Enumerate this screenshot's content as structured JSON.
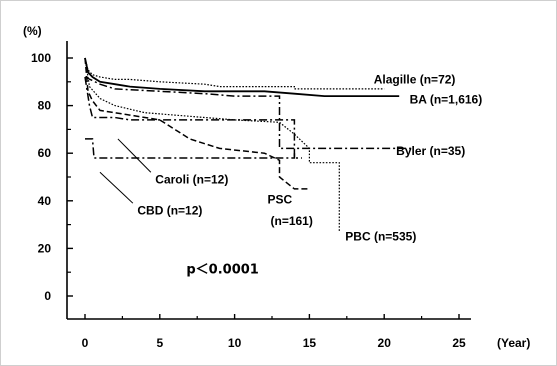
{
  "chart_data": {
    "type": "line",
    "y_unit": "(%)",
    "x_unit": "(Year)",
    "xlim": [
      0,
      25
    ],
    "ylim": [
      0,
      100
    ],
    "x_ticks": [
      "0",
      "5",
      "10",
      "15",
      "20",
      "25"
    ],
    "y_ticks": [
      "0",
      "20",
      "40",
      "60",
      "80",
      "100"
    ],
    "grid": false,
    "p_value": "p＜0.0001",
    "series": [
      {
        "name": "Alagille (n=72)",
        "style": "dotted",
        "points": [
          [
            0,
            100
          ],
          [
            0.2,
            95
          ],
          [
            0.5,
            93
          ],
          [
            1,
            92
          ],
          [
            2,
            91
          ],
          [
            3,
            91
          ],
          [
            5,
            90
          ],
          [
            8,
            89
          ],
          [
            9,
            88
          ],
          [
            14,
            88
          ],
          [
            14,
            87
          ],
          [
            20,
            87
          ]
        ]
      },
      {
        "name": "BA (n=1,616)",
        "style": "solid",
        "points": [
          [
            0,
            100
          ],
          [
            0.2,
            94
          ],
          [
            0.5,
            92
          ],
          [
            1,
            90
          ],
          [
            2,
            89
          ],
          [
            3,
            88
          ],
          [
            5,
            87
          ],
          [
            8,
            86
          ],
          [
            12,
            86
          ],
          [
            14,
            85
          ],
          [
            16,
            84
          ],
          [
            21,
            84
          ]
        ]
      },
      {
        "name": "Byler (n=35)",
        "style": "dashdot",
        "points": [
          [
            0,
            92
          ],
          [
            1,
            89
          ],
          [
            2,
            87
          ],
          [
            5,
            86
          ],
          [
            8,
            85
          ],
          [
            10,
            84
          ],
          [
            13,
            84
          ],
          [
            13,
            62
          ],
          [
            17,
            62
          ],
          [
            22,
            62
          ]
        ]
      },
      {
        "name": "PBC (n=535)",
        "style": "dotted",
        "points": [
          [
            0,
            100
          ],
          [
            0.3,
            88
          ],
          [
            1,
            83
          ],
          [
            2,
            80
          ],
          [
            4,
            77
          ],
          [
            6,
            76
          ],
          [
            8,
            75
          ],
          [
            10,
            74
          ],
          [
            13,
            73
          ],
          [
            14,
            68
          ],
          [
            15,
            62
          ],
          [
            15,
            56
          ],
          [
            16,
            56
          ],
          [
            17,
            56
          ],
          [
            17,
            27
          ]
        ]
      },
      {
        "name": "PSC\n(n=161)",
        "style": "dashed",
        "points": [
          [
            0,
            100
          ],
          [
            0.2,
            86
          ],
          [
            0.5,
            82
          ],
          [
            1,
            78
          ],
          [
            3,
            76
          ],
          [
            5,
            74
          ],
          [
            6,
            70
          ],
          [
            7,
            66
          ],
          [
            8,
            64
          ],
          [
            9,
            62
          ],
          [
            12,
            60
          ],
          [
            13,
            57
          ],
          [
            13,
            50
          ],
          [
            14,
            45
          ],
          [
            15,
            45
          ]
        ]
      },
      {
        "name": "Caroli (n=12)",
        "style": "dashdot",
        "points": [
          [
            0,
            92
          ],
          [
            0.3,
            80
          ],
          [
            0.5,
            75
          ],
          [
            2,
            75
          ],
          [
            3,
            74
          ],
          [
            14,
            74
          ],
          [
            14,
            58
          ],
          [
            14.5,
            58
          ]
        ]
      },
      {
        "name": "CBD (n=12)",
        "style": "dashdot",
        "points": [
          [
            0,
            66
          ],
          [
            0.5,
            66
          ],
          [
            0.6,
            58
          ],
          [
            14,
            58
          ],
          [
            14,
            60
          ]
        ]
      }
    ],
    "annotations": [
      {
        "text": "Alagille (n=72)",
        "x": 19.3,
        "y": 91
      },
      {
        "text": "BA (n=1,616)",
        "x": 21.7,
        "y": 82.5
      },
      {
        "text": "Byler (n=35)",
        "x": 20.8,
        "y": 61
      },
      {
        "text": "Caroli (n=12)",
        "x": 4.7,
        "y": 49
      },
      {
        "text": "CBD (n=12)",
        "x": 3.5,
        "y": 36
      },
      {
        "text": "PSC",
        "x": 12.2,
        "y": 40.5
      },
      {
        "text": "(n=161)",
        "x": 12.4,
        "y": 31.5
      },
      {
        "text": "PBC (n=535)",
        "x": 17.4,
        "y": 25
      }
    ],
    "leader_lines": [
      {
        "from": [
          4.4,
          52
        ],
        "to": [
          2.2,
          66
        ]
      },
      {
        "from": [
          3.2,
          39
        ],
        "to": [
          1.0,
          52
        ]
      }
    ]
  }
}
